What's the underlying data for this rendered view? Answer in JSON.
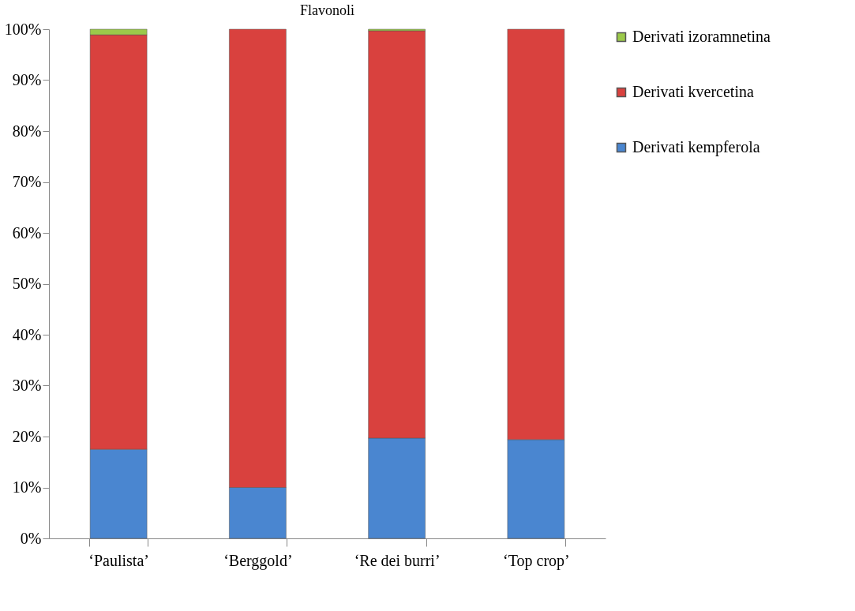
{
  "chart_data": {
    "type": "bar",
    "title": "Flavonoli",
    "stacked": true,
    "categories": [
      "‘Paulista’",
      "‘Berggold’",
      "‘Re dei burri’",
      "‘Top crop’"
    ],
    "series": [
      {
        "name": "Derivati kempferola",
        "color": "#4a86d0",
        "values": [
          17.5,
          10,
          19.7,
          19.4
        ]
      },
      {
        "name": "Derivati kvercetina",
        "color": "#d9413e",
        "values": [
          81.4,
          90,
          80,
          80.6
        ]
      },
      {
        "name": "Derivati izoramnetina",
        "color": "#9bc94a",
        "values": [
          1.1,
          null,
          0.3,
          null
        ]
      }
    ],
    "ylim": [
      0,
      100
    ],
    "yticks": [
      {
        "value": 0,
        "label": "0%"
      },
      {
        "value": 10,
        "label": "10%"
      },
      {
        "value": 20,
        "label": "20%"
      },
      {
        "value": 30,
        "label": "30%"
      },
      {
        "value": 40,
        "label": "40%"
      },
      {
        "value": 50,
        "label": "50%"
      },
      {
        "value": 60,
        "label": "60%"
      },
      {
        "value": 70,
        "label": "70%"
      },
      {
        "value": 80,
        "label": "80%"
      },
      {
        "value": 90,
        "label": "90%"
      },
      {
        "value": 100,
        "label": "100%"
      }
    ],
    "grid": false,
    "legend": "right"
  }
}
